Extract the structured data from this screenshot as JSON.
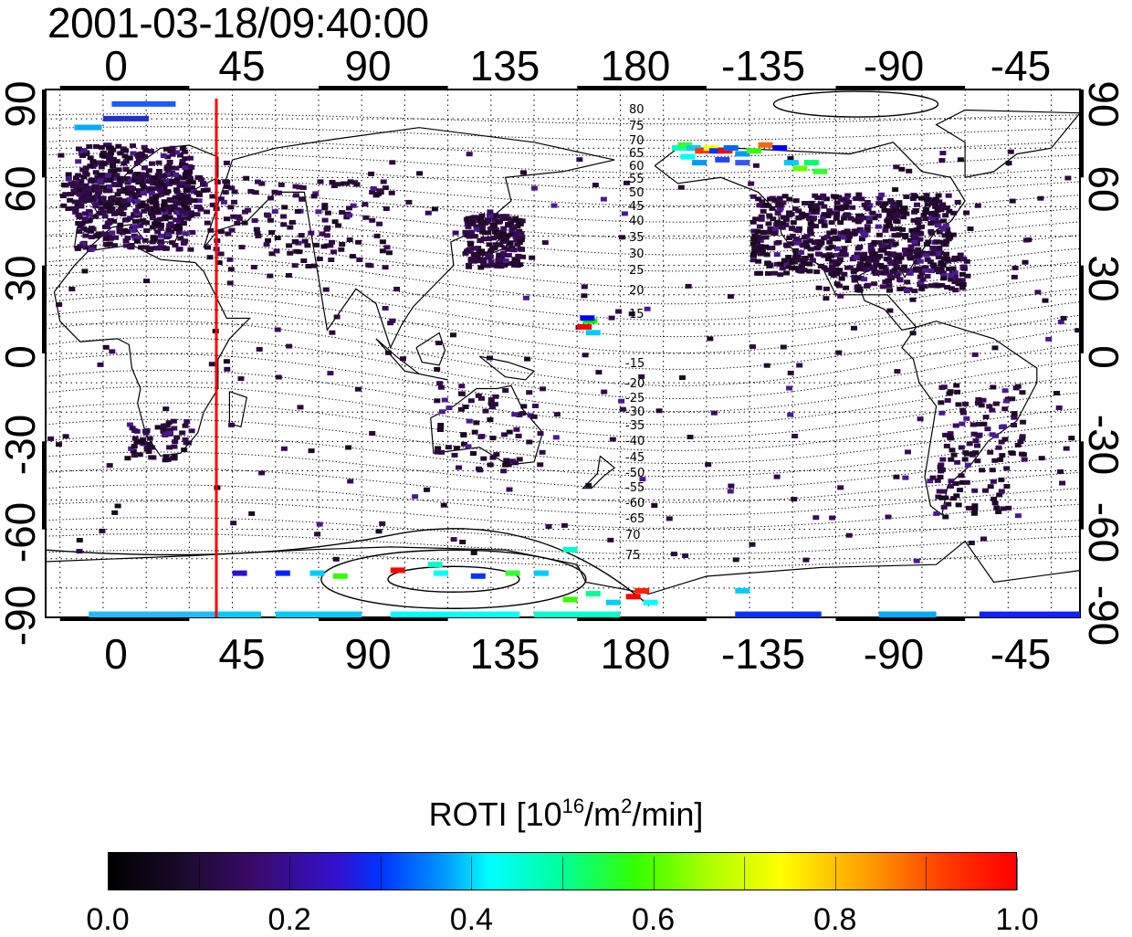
{
  "timestamp": "2001-03-18/09:40:00",
  "map": {
    "type": "world-map",
    "projection": "equirectangular",
    "lon_range": [
      -20,
      340
    ],
    "lat_range": [
      -90,
      90
    ],
    "bottom_ticks": [
      "0",
      "45",
      "90",
      "135",
      "180",
      "-135",
      "-90",
      "-45"
    ],
    "top_ticks": [
      "0",
      "45",
      "90",
      "135",
      "180",
      "-135",
      "-90",
      "-45"
    ],
    "left_ticks": [
      "90",
      "60",
      "30",
      "0",
      "-30",
      "-60",
      "-90"
    ],
    "right_ticks": [
      "90",
      "60",
      "30",
      "0",
      "-30",
      "-60",
      "-90"
    ],
    "grid": "dotted",
    "contour_labels_north": [
      "80",
      "75",
      "70",
      "65",
      "60",
      "55",
      "50",
      "45",
      "40",
      "35",
      "30",
      "25",
      "20",
      "15"
    ],
    "contour_labels_south": [
      "-15",
      "-20",
      "-25",
      "-30",
      "-35",
      "-40",
      "-45",
      "-50",
      "-55",
      "-60",
      "-65",
      "70",
      "75"
    ],
    "terminator_line": {
      "lon": 35,
      "color": "#ff0000"
    }
  },
  "colorbar": {
    "title_main": "ROTI  [10",
    "title_sup1": "16",
    "title_mid": "/m",
    "title_sup2": "2",
    "title_end": "/min]",
    "labels": [
      "0.0",
      "0.2",
      "0.4",
      "0.6",
      "0.8",
      "1.0"
    ],
    "range": [
      0.0,
      1.0
    ],
    "colormap": "dark-purple-blue-cyan-green-yellow-red"
  }
}
